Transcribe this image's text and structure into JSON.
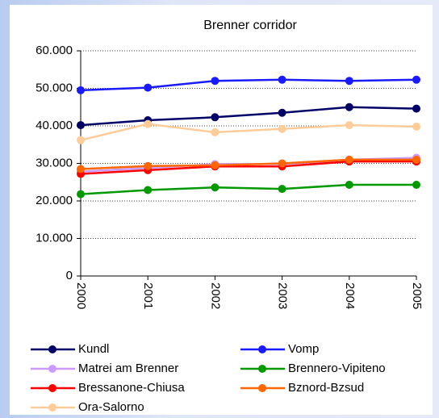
{
  "chart_data": {
    "type": "line",
    "title": "Brenner corridor",
    "categories": [
      "2000",
      "2001",
      "2002",
      "2003",
      "2004",
      "2005"
    ],
    "series": [
      {
        "name": "Kundl",
        "color": "#000066",
        "values": [
          40200,
          41500,
          42300,
          43500,
          45000,
          44600
        ]
      },
      {
        "name": "Vomp",
        "color": "#1a1aff",
        "values": [
          49500,
          50200,
          52000,
          52300,
          52000,
          52300
        ]
      },
      {
        "name": "Matrei am Brenner",
        "color": "#cc99ff",
        "values": [
          27800,
          28800,
          29800,
          29800,
          31000,
          31500
        ]
      },
      {
        "name": "Brennero-Vipiteno",
        "color": "#009900",
        "values": [
          21800,
          22900,
          23600,
          23200,
          24300,
          24300
        ]
      },
      {
        "name": "Bressanone-Chiusa",
        "color": "#ff0000",
        "values": [
          27200,
          28200,
          29200,
          29200,
          30500,
          30500
        ]
      },
      {
        "name": "Bznord-Bzsud",
        "color": "#ff6600",
        "values": [
          28500,
          29300,
          29500,
          30000,
          31000,
          31000
        ]
      },
      {
        "name": "Ora-Salorno",
        "color": "#ffcc99",
        "values": [
          36200,
          40500,
          38300,
          39200,
          40200,
          39800
        ]
      }
    ],
    "ylim": [
      0,
      60000
    ],
    "yticks": [
      0,
      {
        "value": 10000,
        "label": "10.000"
      },
      {
        "value": 20000,
        "label": "20.000"
      },
      {
        "value": 30000,
        "label": "30.000"
      },
      {
        "value": 40000,
        "label": "40.000"
      },
      {
        "value": 50000,
        "label": "50.000"
      },
      {
        "value": 60000,
        "label": "60.000"
      }
    ],
    "grid": true,
    "legend": "bottom"
  }
}
